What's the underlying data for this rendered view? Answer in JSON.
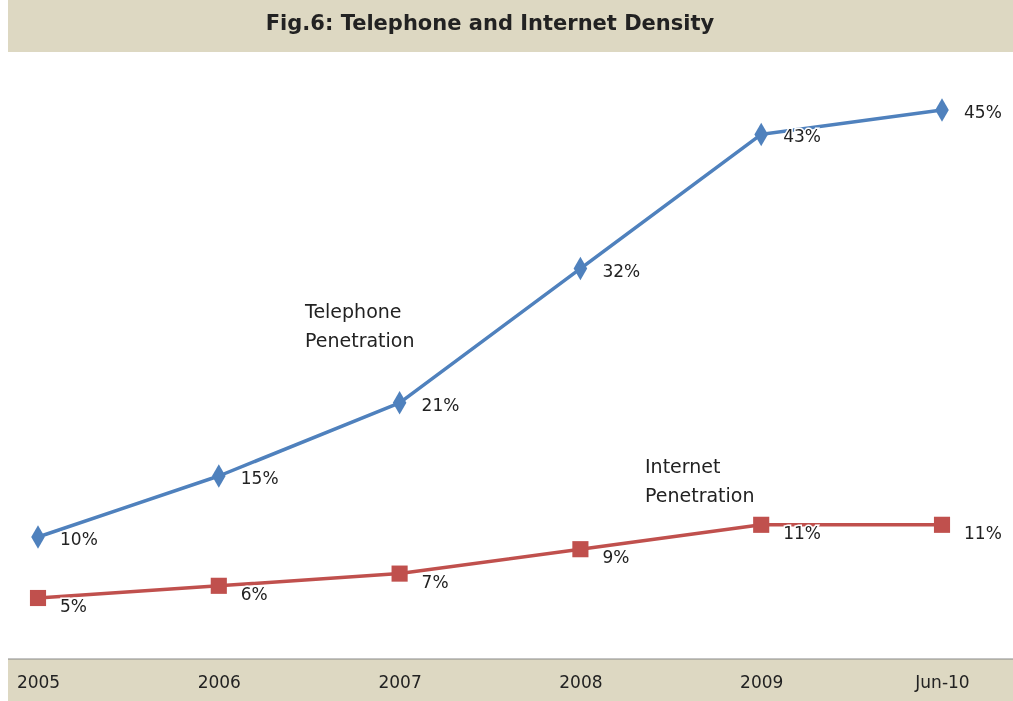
{
  "chart_data": {
    "type": "line",
    "title": "Fig.6: Telephone and Internet Density",
    "categories": [
      "2005",
      "2006",
      "2007",
      "2008",
      "2009",
      "Jun-10"
    ],
    "series": [
      {
        "name": "Telephone Penetration",
        "color": "#4f81bd",
        "marker": "diamond",
        "values": [
          10,
          15,
          21,
          32,
          43,
          45
        ],
        "value_labels": [
          "10%",
          "15%",
          "21%",
          "32%",
          "43%",
          "45%"
        ]
      },
      {
        "name": "Internet Penetration",
        "color": "#c0504d",
        "marker": "square",
        "values": [
          5,
          6,
          7,
          9,
          11,
          11
        ],
        "value_labels": [
          "5%",
          "6%",
          "7%",
          "9%",
          "11%",
          "11%"
        ]
      }
    ]
  }
}
